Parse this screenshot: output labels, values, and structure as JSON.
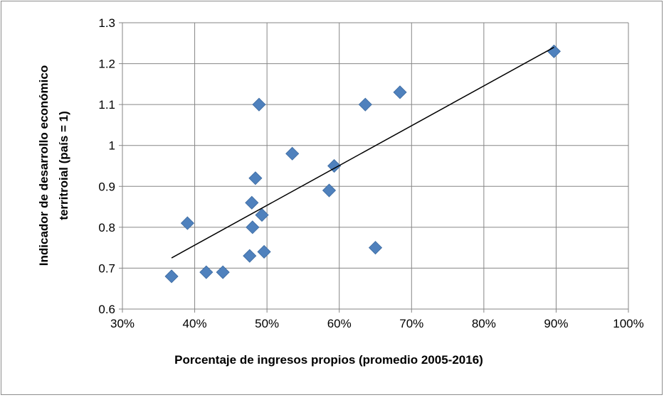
{
  "chart_data": {
    "type": "scatter",
    "xlabel": "Porcentaje de ingresos propios (promedio 2005-2016)",
    "ylabel": [
      "Indicador de desarrollo económico",
      "territroial (país = 1)"
    ],
    "x": [
      36.8,
      39.0,
      41.6,
      43.9,
      47.6,
      48.0,
      47.9,
      48.4,
      48.9,
      49.3,
      49.6,
      53.5,
      58.6,
      59.3,
      63.6,
      65.0,
      68.4,
      89.7
    ],
    "series": [
      {
        "color": "#4f81bd",
        "values": [
          0.68,
          0.81,
          0.69,
          0.69,
          0.73,
          0.8,
          0.86,
          0.92,
          1.1,
          0.83,
          0.74,
          0.98,
          0.89,
          0.95,
          1.1,
          0.75,
          1.13,
          1.23
        ]
      }
    ],
    "trendline": {
      "x": [
        36.8,
        89.7
      ],
      "values": [
        0.725,
        1.24
      ],
      "color": "#000000"
    },
    "xlim": [
      30,
      100
    ],
    "xticks": [
      {
        "value": 30,
        "label": "30%"
      },
      {
        "value": 40,
        "label": "40%"
      },
      {
        "value": 50,
        "label": "50%"
      },
      {
        "value": 60,
        "label": "60%"
      },
      {
        "value": 70,
        "label": "70%"
      },
      {
        "value": 80,
        "label": "80%"
      },
      {
        "value": 90,
        "label": "90%"
      },
      {
        "value": 100,
        "label": "100%"
      }
    ],
    "ylim": [
      0.6,
      1.3
    ],
    "yticks": [
      0.6,
      0.7,
      0.8,
      0.9,
      1,
      1.1,
      1.2,
      1.3
    ],
    "grid": true
  }
}
